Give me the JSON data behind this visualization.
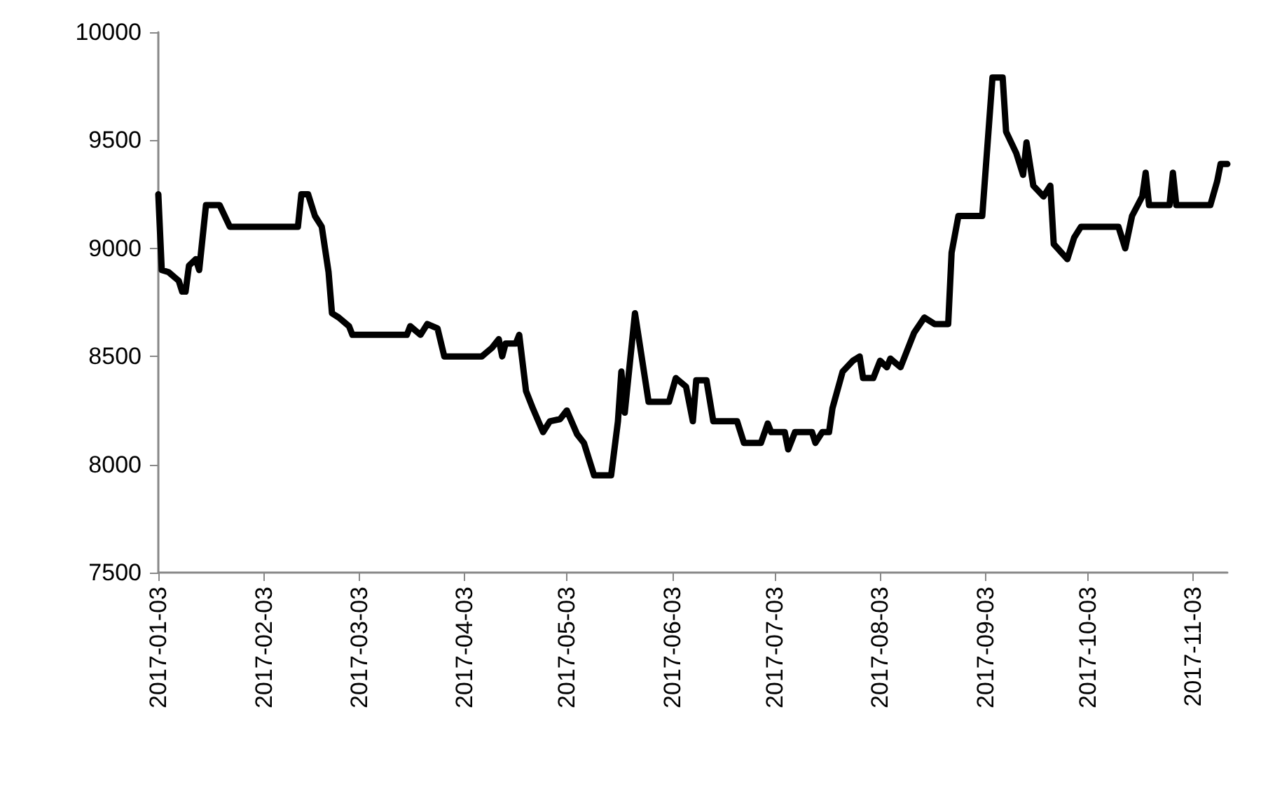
{
  "chart_data": {
    "type": "line",
    "x": [
      "2017-01-03",
      "2017-01-04",
      "2017-01-06",
      "2017-01-09",
      "2017-01-10",
      "2017-01-11",
      "2017-01-12",
      "2017-01-14",
      "2017-01-15",
      "2017-01-17",
      "2017-01-21",
      "2017-01-24",
      "2017-02-13",
      "2017-02-14",
      "2017-02-16",
      "2017-02-18",
      "2017-02-20",
      "2017-02-22",
      "2017-02-23",
      "2017-02-25",
      "2017-02-28",
      "2017-03-01",
      "2017-03-17",
      "2017-03-18",
      "2017-03-21",
      "2017-03-23",
      "2017-03-26",
      "2017-03-28",
      "2017-04-08",
      "2017-04-11",
      "2017-04-13",
      "2017-04-14",
      "2017-04-15",
      "2017-04-18",
      "2017-04-19",
      "2017-04-21",
      "2017-04-23",
      "2017-04-26",
      "2017-04-28",
      "2017-05-01",
      "2017-05-03",
      "2017-05-06",
      "2017-05-08",
      "2017-05-11",
      "2017-05-16",
      "2017-05-18",
      "2017-05-19",
      "2017-05-20",
      "2017-05-23",
      "2017-05-27",
      "2017-06-02",
      "2017-06-04",
      "2017-06-07",
      "2017-06-09",
      "2017-06-10",
      "2017-06-13",
      "2017-06-15",
      "2017-06-22",
      "2017-06-24",
      "2017-06-29",
      "2017-07-01",
      "2017-07-02",
      "2017-07-06",
      "2017-07-07",
      "2017-07-09",
      "2017-07-14",
      "2017-07-15",
      "2017-07-17",
      "2017-07-19",
      "2017-07-20",
      "2017-07-23",
      "2017-07-26",
      "2017-07-28",
      "2017-07-29",
      "2017-08-01",
      "2017-08-03",
      "2017-08-05",
      "2017-08-06",
      "2017-08-09",
      "2017-08-11",
      "2017-08-13",
      "2017-08-16",
      "2017-08-19",
      "2017-08-23",
      "2017-08-24",
      "2017-08-26",
      "2017-09-02",
      "2017-09-05",
      "2017-09-08",
      "2017-09-09",
      "2017-09-12",
      "2017-09-14",
      "2017-09-15",
      "2017-09-17",
      "2017-09-20",
      "2017-09-22",
      "2017-09-23",
      "2017-09-27",
      "2017-09-29",
      "2017-10-01",
      "2017-10-12",
      "2017-10-14",
      "2017-10-16",
      "2017-10-19",
      "2017-10-20",
      "2017-10-21",
      "2017-10-27",
      "2017-10-28",
      "2017-10-29",
      "2017-11-08",
      "2017-11-10",
      "2017-11-11",
      "2017-11-13"
    ],
    "series": [
      {
        "color": "#000000",
        "values": [
          9250,
          8900,
          8890,
          8850,
          8800,
          8800,
          8920,
          8950,
          8900,
          9200,
          9200,
          9100,
          9100,
          9250,
          9250,
          9150,
          9100,
          8890,
          8700,
          8680,
          8640,
          8600,
          8600,
          8640,
          8600,
          8650,
          8630,
          8500,
          8500,
          8540,
          8580,
          8500,
          8560,
          8560,
          8600,
          8340,
          8260,
          8150,
          8200,
          8210,
          8250,
          8140,
          8100,
          7950,
          7950,
          8200,
          8430,
          8240,
          8700,
          8290,
          8290,
          8400,
          8360,
          8200,
          8390,
          8390,
          8200,
          8200,
          8100,
          8100,
          8190,
          8150,
          8150,
          8070,
          8150,
          8150,
          8100,
          8150,
          8150,
          8260,
          8430,
          8480,
          8500,
          8400,
          8400,
          8480,
          8450,
          8490,
          8450,
          8530,
          8610,
          8680,
          8650,
          8650,
          8980,
          9150,
          9150,
          9790,
          9790,
          9540,
          9440,
          9340,
          9490,
          9290,
          9240,
          9290,
          9020,
          8950,
          9050,
          9100,
          9100,
          9000,
          9150,
          9240,
          9350,
          9200,
          9200,
          9350,
          9200,
          9200,
          9310,
          9390,
          9390
        ]
      }
    ],
    "xlim": [
      "2017-01-03",
      "2017-11-13"
    ],
    "xticks": [
      "2017-01-03",
      "2017-02-03",
      "2017-03-03",
      "2017-04-03",
      "2017-05-03",
      "2017-06-03",
      "2017-07-03",
      "2017-08-03",
      "2017-09-03",
      "2017-10-03",
      "2017-11-03"
    ],
    "ylim": [
      7500,
      10000
    ],
    "yticks": [
      7500,
      8000,
      8500,
      9000,
      9500,
      10000
    ],
    "grid": false,
    "marker": "none",
    "line_style": "solid"
  }
}
